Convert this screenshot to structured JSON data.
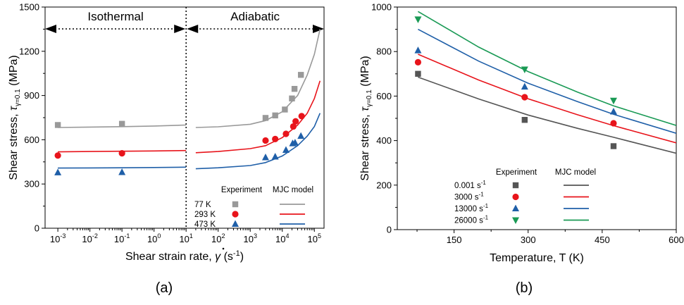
{
  "chart_data": [
    {
      "panel": "(a)",
      "type": "scatter",
      "xscale": "log",
      "xlabel": "Shear strain rate, γ̇ (s⁻¹)",
      "xlabel_parts": {
        "pre": "Shear strain rate, ",
        "sym": "γ",
        "post": " (s",
        "sup": "-1",
        "close": ")"
      },
      "ylabel": "Shear stress, τγ=0.1 (MPa)",
      "ylabel_parts": {
        "pre": "Shear stress, ",
        "sym": "τ",
        "sub": "γ=0.1",
        "post": " (MPa)"
      },
      "xlim": [
        0.0004,
        200000
      ],
      "ylim": [
        0,
        1500
      ],
      "xticks": [
        {
          "v": 0.001,
          "m": "10",
          "e": "-3"
        },
        {
          "v": 0.01,
          "m": "10",
          "e": "-2"
        },
        {
          "v": 0.1,
          "m": "10",
          "e": "-1"
        },
        {
          "v": 1,
          "m": "10",
          "e": "0"
        },
        {
          "v": 10,
          "m": "10",
          "e": "1"
        },
        {
          "v": 100,
          "m": "10",
          "e": "2"
        },
        {
          "v": 1000,
          "m": "10",
          "e": "3"
        },
        {
          "v": 10000,
          "m": "10",
          "e": "4"
        },
        {
          "v": 100000,
          "m": "10",
          "e": "5"
        }
      ],
      "yticks": [
        0,
        300,
        600,
        900,
        1200,
        1500
      ],
      "regions": {
        "left": "Isothermal",
        "right": "Adiabatic",
        "boundary_x": 10
      },
      "legend": {
        "experiment": "Experiment",
        "model": "MJC model",
        "position": "bottom-right"
      },
      "series": [
        {
          "name": "77 K",
          "color": "#999999",
          "marker": "square",
          "experiment": [
            [
              0.001,
              700
            ],
            [
              0.1,
              708
            ],
            [
              3000,
              748
            ],
            [
              6000,
              765
            ],
            [
              12000,
              805
            ],
            [
              20000,
              880
            ],
            [
              24000,
              945
            ],
            [
              38000,
              1040
            ]
          ],
          "model": [
            [
              0.001,
              683
            ],
            [
              0.01,
              686
            ],
            [
              0.1,
              689
            ],
            [
              1,
              693
            ],
            [
              10,
              700
            ],
            [
              20,
              683
            ],
            [
              100,
              688
            ],
            [
              1000,
              705
            ],
            [
              3000,
              730
            ],
            [
              10000,
              790
            ],
            [
              30000,
              900
            ],
            [
              60000,
              1040
            ],
            [
              100000,
              1180
            ],
            [
              150000,
              1350
            ]
          ]
        },
        {
          "name": "293 K",
          "color": "#e8141b",
          "marker": "circle",
          "experiment": [
            [
              0.001,
              493
            ],
            [
              0.1,
              508
            ],
            [
              3000,
              595
            ],
            [
              6000,
              605
            ],
            [
              13000,
              640
            ],
            [
              22000,
              690
            ],
            [
              26000,
              725
            ],
            [
              40000,
              760
            ]
          ],
          "model": [
            [
              0.001,
              518
            ],
            [
              0.01,
              520
            ],
            [
              0.1,
              522
            ],
            [
              1,
              524
            ],
            [
              10,
              527
            ],
            [
              20,
              512
            ],
            [
              100,
              520
            ],
            [
              1000,
              540
            ],
            [
              3000,
              560
            ],
            [
              10000,
              615
            ],
            [
              30000,
              700
            ],
            [
              60000,
              780
            ],
            [
              100000,
              880
            ],
            [
              150000,
              1000
            ]
          ]
        },
        {
          "name": "473 K",
          "color": "#1f5fa8",
          "marker": "triangle",
          "experiment": [
            [
              0.001,
              378
            ],
            [
              0.1,
              380
            ],
            [
              3000,
              480
            ],
            [
              6000,
              485
            ],
            [
              13000,
              530
            ],
            [
              21000,
              575
            ],
            [
              25000,
              580
            ],
            [
              38000,
              625
            ]
          ],
          "model": [
            [
              0.001,
              408
            ],
            [
              0.01,
              409
            ],
            [
              0.1,
              410
            ],
            [
              1,
              412
            ],
            [
              10,
              414
            ],
            [
              20,
              403
            ],
            [
              100,
              410
            ],
            [
              1000,
              425
            ],
            [
              3000,
              445
            ],
            [
              10000,
              490
            ],
            [
              30000,
              560
            ],
            [
              60000,
              625
            ],
            [
              100000,
              690
            ],
            [
              150000,
              780
            ]
          ]
        }
      ]
    },
    {
      "panel": "(b)",
      "type": "scatter",
      "xlabel": "Temperature, T (K)",
      "ylabel": "Shear stress, τγ=0.1 (MPa)",
      "ylabel_parts": {
        "pre": "Shear stress, ",
        "sym": "τ",
        "sub": "γ=0.1",
        "post": " (MPa)"
      },
      "xlim": [
        35,
        600
      ],
      "ylim": [
        0,
        1000
      ],
      "xticks": [
        150,
        300,
        450,
        600
      ],
      "yticks": [
        0,
        200,
        400,
        600,
        800,
        1000
      ],
      "legend": {
        "experiment": "Experiment",
        "model": "MJC model",
        "position": "bottom-left"
      },
      "series": [
        {
          "name": "0.001",
          "unit": " s",
          "unit_sup": "-1",
          "color": "#555555",
          "marker": "square",
          "experiment": [
            [
              77,
              700
            ],
            [
              293,
              493
            ],
            [
              473,
              375
            ]
          ],
          "model": [
            [
              77,
              685
            ],
            [
              200,
              587
            ],
            [
              300,
              515
            ],
            [
              400,
              455
            ],
            [
              473,
              415
            ],
            [
              600,
              343
            ]
          ]
        },
        {
          "name": "3000",
          "unit": " s",
          "unit_sup": "-1",
          "color": "#e8141b",
          "marker": "circle",
          "experiment": [
            [
              77,
              752
            ],
            [
              293,
              595
            ],
            [
              473,
              478
            ]
          ],
          "model": [
            [
              77,
              788
            ],
            [
              200,
              672
            ],
            [
              300,
              588
            ],
            [
              400,
              516
            ],
            [
              473,
              467
            ],
            [
              600,
              390
            ]
          ]
        },
        {
          "name": "13000",
          "unit": " s",
          "unit_sup": "-1",
          "color": "#1f5fa8",
          "marker": "triangle",
          "experiment": [
            [
              77,
              805
            ],
            [
              293,
              642
            ],
            [
              473,
              530
            ]
          ],
          "model": [
            [
              77,
              900
            ],
            [
              200,
              757
            ],
            [
              300,
              658
            ],
            [
              400,
              575
            ],
            [
              473,
              518
            ],
            [
              600,
              433
            ]
          ]
        },
        {
          "name": "26000",
          "unit": " s",
          "unit_sup": "-1",
          "color": "#1a9a55",
          "marker": "triangle-down",
          "experiment": [
            [
              77,
              945
            ],
            [
              293,
              720
            ],
            [
              473,
              580
            ]
          ],
          "model": [
            [
              77,
              980
            ],
            [
              200,
              820
            ],
            [
              300,
              710
            ],
            [
              400,
              618
            ],
            [
              473,
              556
            ],
            [
              600,
              468
            ]
          ]
        }
      ]
    }
  ],
  "panel_labels": {
    "a": "(a)",
    "b": "(b)"
  }
}
